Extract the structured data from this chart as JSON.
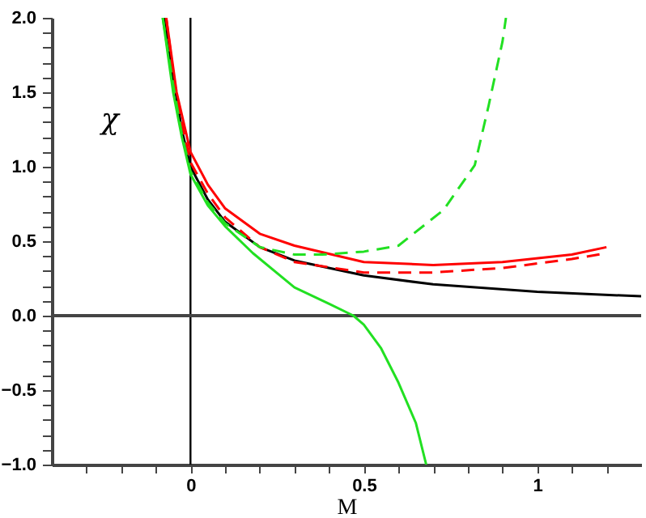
{
  "chart_data": {
    "type": "line",
    "xlabel": "M",
    "ylabel": "χ",
    "xlim": [
      -0.4,
      1.3
    ],
    "ylim": [
      -1.0,
      2.0
    ],
    "xticks": [
      {
        "value": -0.3,
        "label": null
      },
      {
        "value": -0.2,
        "label": null
      },
      {
        "value": -0.1,
        "label": null
      },
      0,
      {
        "value": 0.1,
        "label": null
      },
      {
        "value": 0.2,
        "label": null
      },
      {
        "value": 0.3,
        "label": null
      },
      {
        "value": 0.4,
        "label": null
      },
      0.5,
      {
        "value": 0.6,
        "label": null
      },
      {
        "value": 0.7,
        "label": null
      },
      {
        "value": 0.8,
        "label": null
      },
      {
        "value": 0.9,
        "label": null
      },
      1,
      {
        "value": 1.1,
        "label": null
      },
      {
        "value": 1.2,
        "label": null
      }
    ],
    "yticks": [
      {
        "value": -1.0,
        "label": "−1.0"
      },
      {
        "value": -0.9,
        "label": null
      },
      {
        "value": -0.8,
        "label": null
      },
      {
        "value": -0.7,
        "label": null
      },
      {
        "value": -0.6,
        "label": null
      },
      {
        "value": -0.5,
        "label": "−0.5"
      },
      {
        "value": -0.4,
        "label": null
      },
      {
        "value": -0.3,
        "label": null
      },
      {
        "value": -0.2,
        "label": null
      },
      {
        "value": -0.1,
        "label": null
      },
      {
        "value": 0,
        "label": "0.0"
      },
      {
        "value": 0.1,
        "label": null
      },
      {
        "value": 0.2,
        "label": null
      },
      {
        "value": 0.3,
        "label": null
      },
      {
        "value": 0.4,
        "label": null
      },
      {
        "value": 0.5,
        "label": "0.5"
      },
      {
        "value": 0.6,
        "label": null
      },
      {
        "value": 0.7,
        "label": null
      },
      {
        "value": 0.8,
        "label": null
      },
      {
        "value": 0.9,
        "label": null
      },
      {
        "value": 1.0,
        "label": "1.0"
      },
      {
        "value": 1.1,
        "label": null
      },
      {
        "value": 1.2,
        "label": null
      },
      {
        "value": 1.3,
        "label": null
      },
      {
        "value": 1.4,
        "label": null
      },
      {
        "value": 1.5,
        "label": "1.5"
      },
      {
        "value": 1.6,
        "label": null
      },
      {
        "value": 1.7,
        "label": null
      },
      {
        "value": 1.8,
        "label": null
      },
      {
        "value": 1.9,
        "label": null
      },
      {
        "value": 2.0,
        "label": "2.0"
      }
    ],
    "grid": false,
    "ref_lines": [
      {
        "axis": "x",
        "value": 0,
        "color": "#000000"
      },
      {
        "axis": "y",
        "value": 0,
        "color": "#444444"
      }
    ],
    "series": [
      {
        "color": "#000000",
        "line_style": "solid",
        "x": [
          -0.075,
          -0.05,
          -0.025,
          0,
          0.05,
          0.1,
          0.2,
          0.3,
          0.5,
          0.7,
          1.0,
          1.3
        ],
        "values": [
          2.0,
          1.6,
          1.25,
          1.0,
          0.78,
          0.63,
          0.46,
          0.37,
          0.27,
          0.21,
          0.16,
          0.13
        ]
      },
      {
        "color": "#ff0000",
        "line_style": "solid",
        "x": [
          -0.07,
          -0.04,
          0,
          0.05,
          0.1,
          0.2,
          0.3,
          0.5,
          0.7,
          0.9,
          1.1,
          1.2
        ],
        "values": [
          2.0,
          1.5,
          1.1,
          0.88,
          0.72,
          0.55,
          0.47,
          0.36,
          0.34,
          0.36,
          0.41,
          0.46
        ]
      },
      {
        "color": "#ff0000",
        "line_style": "dashed",
        "x": [
          -0.07,
          -0.04,
          0,
          0.05,
          0.1,
          0.2,
          0.3,
          0.5,
          0.7,
          0.9,
          1.1,
          1.2
        ],
        "values": [
          2.0,
          1.45,
          1.03,
          0.82,
          0.66,
          0.46,
          0.36,
          0.29,
          0.29,
          0.32,
          0.38,
          0.42
        ]
      },
      {
        "color": "#22e022",
        "line_style": "solid",
        "x": [
          -0.08,
          -0.05,
          -0.025,
          0,
          0.05,
          0.1,
          0.18,
          0.3,
          0.4,
          0.47,
          0.5,
          0.55,
          0.6,
          0.65,
          0.68
        ],
        "values": [
          2.0,
          1.5,
          1.2,
          0.95,
          0.74,
          0.6,
          0.42,
          0.19,
          0.08,
          0.0,
          -0.06,
          -0.22,
          -0.45,
          -0.72,
          -1.0
        ]
      },
      {
        "color": "#22e022",
        "line_style": "dashed",
        "x": [
          -0.08,
          -0.05,
          -0.025,
          0,
          0.05,
          0.1,
          0.2,
          0.3,
          0.38,
          0.5,
          0.6,
          0.73,
          0.82,
          0.86,
          0.9,
          0.91
        ],
        "values": [
          2.0,
          1.55,
          1.22,
          0.97,
          0.76,
          0.62,
          0.46,
          0.41,
          0.41,
          0.43,
          0.47,
          0.71,
          1.01,
          1.41,
          1.84,
          2.0
        ]
      }
    ]
  }
}
